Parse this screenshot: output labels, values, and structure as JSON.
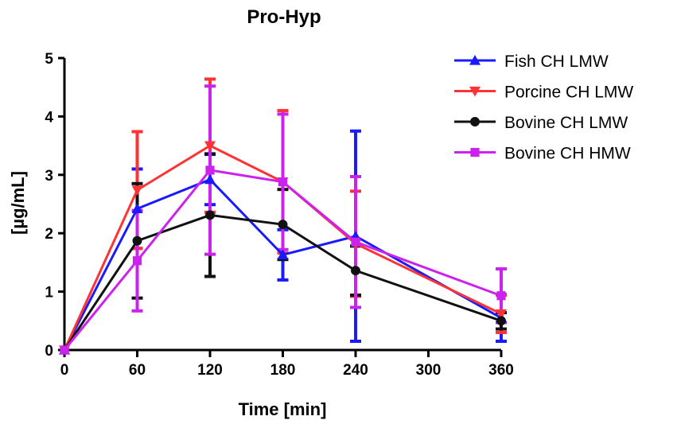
{
  "chart_data": {
    "type": "line",
    "title": "Pro-Hyp",
    "xlabel": "Time [min]",
    "ylabel": "[µg/mL]",
    "xlim": [
      0,
      360
    ],
    "ylim": [
      0,
      5
    ],
    "x_ticks": [
      0,
      60,
      120,
      180,
      240,
      300,
      360
    ],
    "y_ticks": [
      0,
      1,
      2,
      3,
      4,
      5
    ],
    "x": [
      0,
      60,
      120,
      180,
      240,
      360
    ],
    "legend_position": "top-right",
    "series": [
      {
        "name": "Fish CH LMW",
        "color": "#1a1aff",
        "marker": "triangle-up",
        "values": [
          0.0,
          2.42,
          2.92,
          1.63,
          1.95,
          0.55
        ],
        "errors": [
          0.0,
          0.68,
          0.43,
          0.43,
          1.8,
          0.4
        ]
      },
      {
        "name": "Porcine CH LMW",
        "color": "#ff3333",
        "marker": "triangle-down",
        "values": [
          0.0,
          2.74,
          3.5,
          2.88,
          1.82,
          0.62
        ],
        "errors": [
          0.0,
          1.0,
          1.14,
          1.22,
          0.9,
          0.32
        ]
      },
      {
        "name": "Bovine CH LMW",
        "color": "#111111",
        "marker": "circle",
        "values": [
          0.0,
          1.87,
          2.31,
          2.15,
          1.36,
          0.5
        ],
        "errors": [
          0.0,
          0.98,
          1.05,
          0.6,
          0.42,
          0.14
        ]
      },
      {
        "name": "Bovine CH HMW",
        "color": "#cc22ee",
        "marker": "square",
        "values": [
          0.0,
          1.53,
          3.08,
          2.88,
          1.85,
          0.93
        ],
        "errors": [
          0.0,
          0.86,
          1.44,
          1.16,
          1.12,
          0.46
        ]
      }
    ]
  }
}
